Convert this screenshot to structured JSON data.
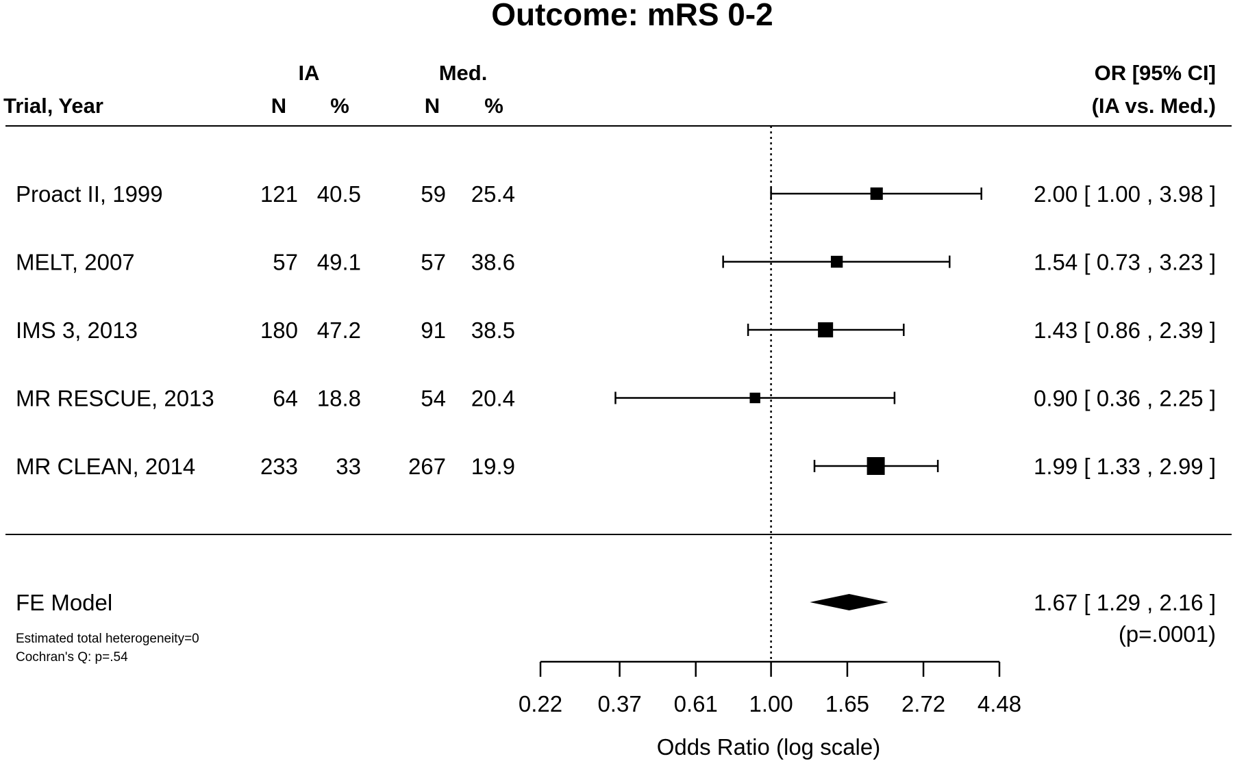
{
  "chart_data": {
    "type": "forest",
    "title": "Outcome: mRS 0-2",
    "xlabel": "Odds Ratio (log scale)",
    "x_scale": "log",
    "xlim": [
      0.22,
      4.48
    ],
    "x_ticks": [
      "0.22",
      "0.37",
      "0.61",
      "1.00",
      "1.65",
      "2.72",
      "4.48"
    ],
    "reference_line": 1.0,
    "headers": {
      "trial": "Trial, Year",
      "group1": "IA",
      "group2": "Med.",
      "n": "N",
      "pct": "%",
      "or_line1": "OR [95% CI]",
      "or_line2": "(IA vs. Med.)"
    },
    "studies": [
      {
        "label": "Proact II, 1999",
        "ia_n": "121",
        "ia_pct": "40.5",
        "med_n": "59",
        "med_pct": "25.4",
        "or": 2.0,
        "lo": 1.0,
        "hi": 3.98,
        "ci_text": "2.00 [ 1.00 , 3.98 ]"
      },
      {
        "label": "MELT, 2007",
        "ia_n": "57",
        "ia_pct": "49.1",
        "med_n": "57",
        "med_pct": "38.6",
        "or": 1.54,
        "lo": 0.73,
        "hi": 3.23,
        "ci_text": "1.54 [ 0.73 , 3.23 ]"
      },
      {
        "label": "IMS 3, 2013",
        "ia_n": "180",
        "ia_pct": "47.2",
        "med_n": "91",
        "med_pct": "38.5",
        "or": 1.43,
        "lo": 0.86,
        "hi": 2.39,
        "ci_text": "1.43 [ 0.86 , 2.39 ]"
      },
      {
        "label": "MR RESCUE, 2013",
        "ia_n": "64",
        "ia_pct": "18.8",
        "med_n": "54",
        "med_pct": "20.4",
        "or": 0.9,
        "lo": 0.36,
        "hi": 2.25,
        "ci_text": "0.90 [ 0.36 , 2.25 ]"
      },
      {
        "label": "MR CLEAN, 2014",
        "ia_n": "233",
        "ia_pct": "33",
        "med_n": "267",
        "med_pct": "19.9",
        "or": 1.99,
        "lo": 1.33,
        "hi": 2.99,
        "ci_text": "1.99 [ 1.33 , 2.99 ]"
      }
    ],
    "summary": {
      "label": "FE Model",
      "or": 1.67,
      "lo": 1.29,
      "hi": 2.16,
      "ci_text": "1.67 [ 1.29 , 2.16 ]",
      "p_text": "(p=.0001)",
      "notes": [
        "Estimated total heterogeneity=0",
        "Cochran's Q: p=.54"
      ]
    }
  }
}
